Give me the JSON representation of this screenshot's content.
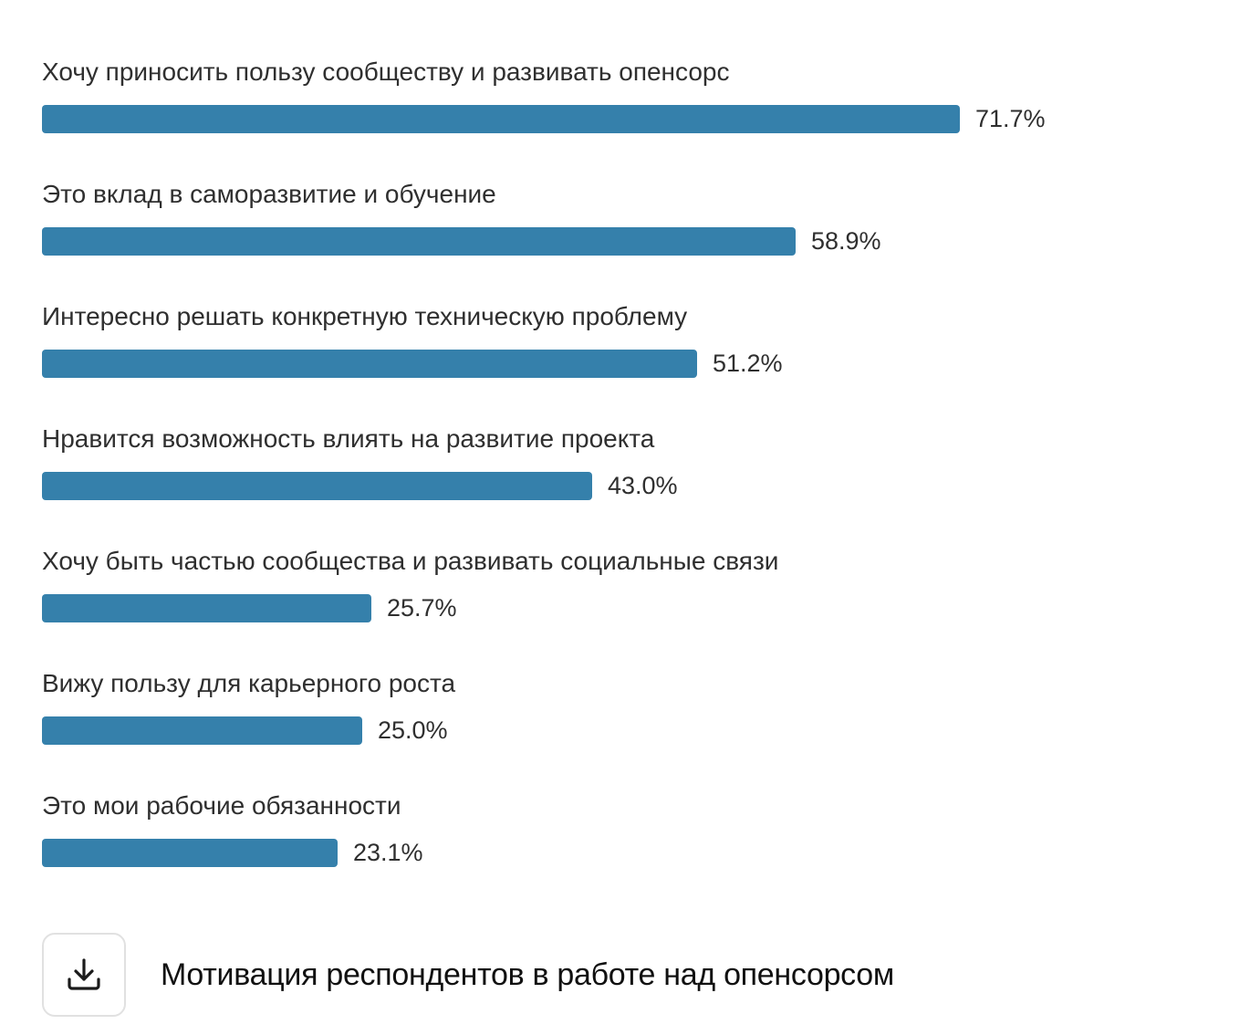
{
  "chart_data": {
    "type": "bar",
    "orientation": "horizontal",
    "categories": [
      "Хочу приносить пользу сообществу и развивать опенсорс",
      "Это вклад в саморазвитие и обучение",
      "Интересно решать конкретную техническую проблему",
      "Нравится возможность влиять на развитие проекта",
      "Хочу быть частью сообщества и развивать социальные связи",
      "Вижу пользу для карьерного роста",
      "Это мои рабочие обязанности"
    ],
    "values": [
      71.7,
      58.9,
      51.2,
      43.0,
      25.7,
      25.0,
      23.1
    ],
    "value_labels": [
      "71.7%",
      "58.9%",
      "51.2%",
      "43.0%",
      "25.7%",
      "25.0%",
      "23.1%"
    ],
    "unit": "%",
    "bar_color": "#3580ab",
    "grid": false,
    "legend": "none"
  },
  "footer": {
    "title": "Мотивация респондентов в работе над опенсорсом",
    "download_icon": "download-icon"
  }
}
